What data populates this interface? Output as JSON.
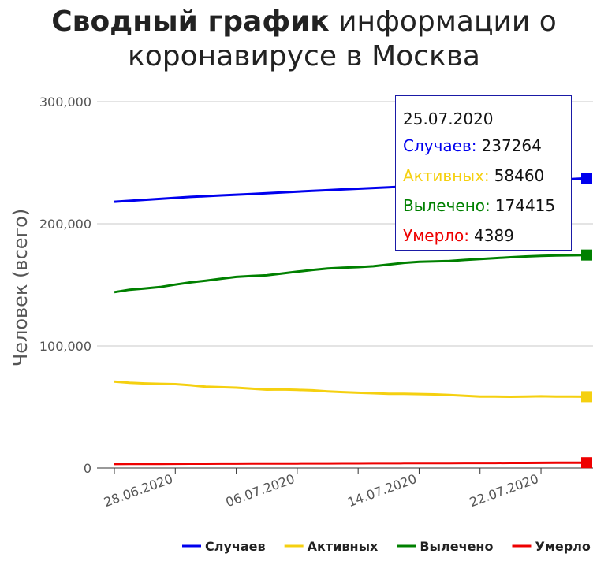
{
  "title_bold": "Сводный график",
  "title_rest": " информации о коронавирусе в Москва",
  "tooltip": {
    "date": "25.07.2020",
    "rows": [
      {
        "label": "Случаев:",
        "value": "237264",
        "color": "#0000ee"
      },
      {
        "label": "Активных:",
        "value": "58460",
        "color": "#f5d010"
      },
      {
        "label": "Вылечено:",
        "value": "174415",
        "color": "#008000"
      },
      {
        "label": "Умерло:",
        "value": "4389",
        "color": "#ee0000"
      }
    ]
  },
  "chart_data": {
    "type": "line",
    "title": "Сводный график информации о коронавирусе в Москва",
    "ylabel": "Человек (всего)",
    "xlabel": "",
    "ylim": [
      0,
      300000
    ],
    "yticks": [
      {
        "value": 0,
        "label": "0"
      },
      {
        "value": 100000,
        "label": "100,000"
      },
      {
        "value": 200000,
        "label": "200,000"
      },
      {
        "value": 300000,
        "label": "300,000"
      }
    ],
    "x_start": "24.06.2020",
    "x_end": "25.07.2020",
    "xticks": [
      "28.06.2020",
      "06.07.2020",
      "14.07.2020",
      "22.07.2020"
    ],
    "x": [
      "24.06.2020",
      "25.06.2020",
      "26.06.2020",
      "27.06.2020",
      "28.06.2020",
      "29.06.2020",
      "30.06.2020",
      "01.07.2020",
      "02.07.2020",
      "03.07.2020",
      "04.07.2020",
      "05.07.2020",
      "06.07.2020",
      "07.07.2020",
      "08.07.2020",
      "09.07.2020",
      "10.07.2020",
      "11.07.2020",
      "12.07.2020",
      "13.07.2020",
      "14.07.2020",
      "15.07.2020",
      "16.07.2020",
      "17.07.2020",
      "18.07.2020",
      "19.07.2020",
      "20.07.2020",
      "21.07.2020",
      "22.07.2020",
      "23.07.2020",
      "24.07.2020",
      "25.07.2020"
    ],
    "grid": true,
    "legend_position": "bottom",
    "series": [
      {
        "name": "Случаев",
        "color": "#0000ee",
        "values": [
          218000,
          218800,
          219600,
          220400,
          221200,
          222000,
          222600,
          223200,
          223800,
          224400,
          225000,
          225700,
          226300,
          226900,
          227500,
          228100,
          228700,
          229300,
          229900,
          230500,
          231100,
          231600,
          232100,
          232600,
          233100,
          233600,
          234100,
          234600,
          235200,
          235900,
          236600,
          237264
        ]
      },
      {
        "name": "Активных",
        "color": "#f5d010",
        "values": [
          70800,
          69800,
          69300,
          69000,
          68700,
          67800,
          66600,
          66200,
          65800,
          65000,
          64200,
          64300,
          64000,
          63600,
          62800,
          62200,
          61700,
          61300,
          60800,
          60800,
          60600,
          60300,
          59800,
          59200,
          58600,
          58500,
          58400,
          58600,
          58800,
          58600,
          58500,
          58460
        ]
      },
      {
        "name": "Вылечено",
        "color": "#008000",
        "values": [
          144000,
          146000,
          147000,
          148200,
          150200,
          152000,
          153400,
          155000,
          156500,
          157300,
          157800,
          159300,
          160800,
          162200,
          163400,
          164000,
          164500,
          165200,
          166600,
          168000,
          168900,
          169200,
          169500,
          170400,
          171100,
          171900,
          172600,
          173200,
          173700,
          174000,
          174200,
          174415
        ]
      },
      {
        "name": "Умерло",
        "color": "#ee0000",
        "values": [
          3300,
          3340,
          3390,
          3440,
          3480,
          3520,
          3560,
          3600,
          3640,
          3680,
          3710,
          3740,
          3770,
          3800,
          3830,
          3860,
          3890,
          3920,
          3950,
          3980,
          4010,
          4040,
          4070,
          4100,
          4130,
          4160,
          4190,
          4220,
          4260,
          4300,
          4345,
          4389
        ]
      }
    ]
  }
}
